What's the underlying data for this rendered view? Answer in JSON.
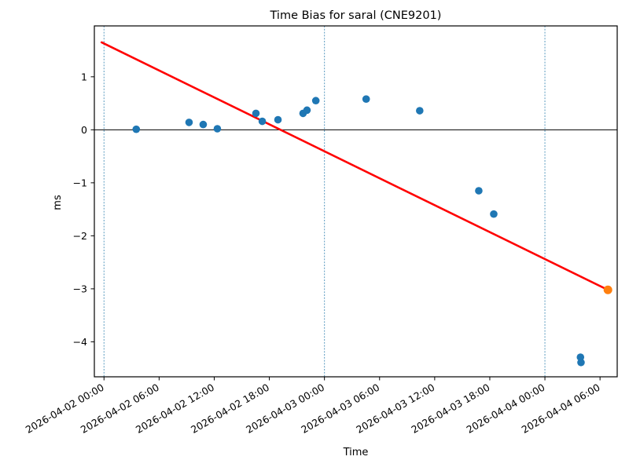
{
  "chart_data": {
    "type": "scatter",
    "title": "Time Bias for saral (CNE9201)",
    "xlabel": "Time",
    "ylabel": "ms",
    "x_axis_unit": "hours since 2026-04-02 00:00",
    "xlim": [
      -1.05,
      55.87
    ],
    "ylim": [
      -4.66,
      1.96
    ],
    "grid": "vertical day-boundary lines only",
    "legend": "none",
    "x_ticks": [
      {
        "hours": 0,
        "label": "2026-04-02 00:00"
      },
      {
        "hours": 6,
        "label": "2026-04-02 06:00"
      },
      {
        "hours": 12,
        "label": "2026-04-02 12:00"
      },
      {
        "hours": 18,
        "label": "2026-04-02 18:00"
      },
      {
        "hours": 24,
        "label": "2026-04-03 00:00"
      },
      {
        "hours": 30,
        "label": "2026-04-03 06:00"
      },
      {
        "hours": 36,
        "label": "2026-04-03 12:00"
      },
      {
        "hours": 42,
        "label": "2026-04-03 18:00"
      },
      {
        "hours": 48,
        "label": "2026-04-04 00:00"
      },
      {
        "hours": 54,
        "label": "2026-04-04 06:00"
      }
    ],
    "y_ticks": [
      {
        "value": 1,
        "label": "1"
      },
      {
        "value": 0,
        "label": "0"
      },
      {
        "value": -1,
        "label": "−1"
      },
      {
        "value": -2,
        "label": "−2"
      },
      {
        "value": -3,
        "label": "−3"
      },
      {
        "value": -4,
        "label": "−4"
      }
    ],
    "day_lines_hours": [
      0,
      24,
      48
    ],
    "day_line_color": "#5b9bc0",
    "zero_line_color": "#000000",
    "series": [
      {
        "name": "time-bias-points",
        "color": "#1f77b4",
        "marker_radius": 4.8,
        "points": [
          {
            "time": "2026-04-02 03:31",
            "hours": 3.51,
            "ms": 0.01
          },
          {
            "time": "2026-04-02 09:16",
            "hours": 9.26,
            "ms": 0.14
          },
          {
            "time": "2026-04-02 10:48",
            "hours": 10.8,
            "ms": 0.1
          },
          {
            "time": "2026-04-02 12:20",
            "hours": 12.34,
            "ms": 0.02
          },
          {
            "time": "2026-04-02 16:32",
            "hours": 16.54,
            "ms": 0.31
          },
          {
            "time": "2026-04-02 17:14",
            "hours": 17.23,
            "ms": 0.16
          },
          {
            "time": "2026-04-02 18:56",
            "hours": 18.94,
            "ms": 0.19
          },
          {
            "time": "2026-04-02 21:40",
            "hours": 21.67,
            "ms": 0.31
          },
          {
            "time": "2026-04-02 22:06",
            "hours": 22.1,
            "ms": 0.37
          },
          {
            "time": "2026-04-02 23:04",
            "hours": 23.06,
            "ms": 0.55
          },
          {
            "time": "2026-04-03 04:32",
            "hours": 28.54,
            "ms": 0.58
          },
          {
            "time": "2026-04-03 10:22",
            "hours": 34.37,
            "ms": 0.36
          },
          {
            "time": "2026-04-03 16:48",
            "hours": 40.8,
            "ms": -1.15
          },
          {
            "time": "2026-04-03 18:26",
            "hours": 42.43,
            "ms": -1.59
          },
          {
            "time": "2026-04-04 03:52",
            "hours": 51.87,
            "ms": -4.29
          },
          {
            "time": "2026-04-04 03:56",
            "hours": 51.93,
            "ms": -4.39
          }
        ]
      },
      {
        "name": "latest-bias-point",
        "color": "#ff7f0e",
        "marker_radius": 5.5,
        "points": [
          {
            "time": "2026-04-04 06:52",
            "hours": 54.86,
            "ms": -3.02
          }
        ]
      }
    ],
    "trend_line": {
      "color": "#ff0000",
      "width": 2.6,
      "from": {
        "hours": -0.26,
        "ms": 1.65
      },
      "to": {
        "hours": 54.86,
        "ms": -3.02
      }
    }
  }
}
